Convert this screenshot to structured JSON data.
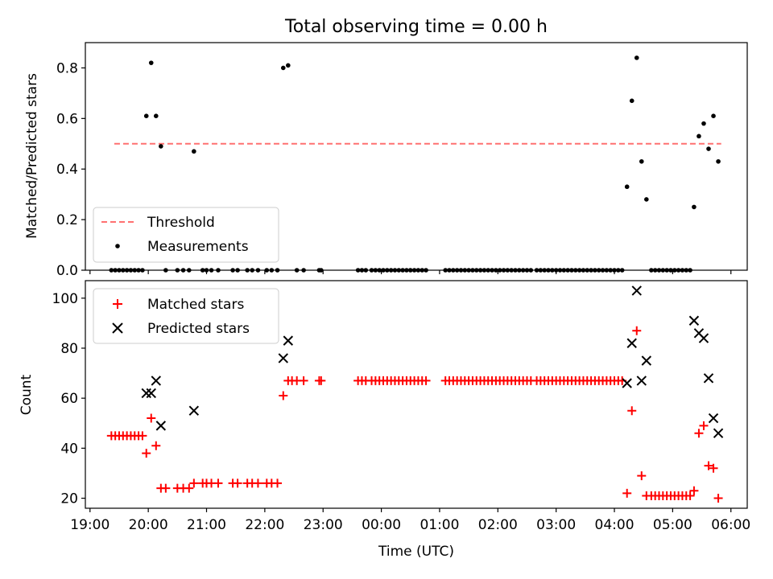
{
  "figure": {
    "title": "Total observing time = 0.00 h",
    "xlabel": "Time (UTC)",
    "colors": {
      "threshold": "#ff7070",
      "measurements": "#000000",
      "matched": "#ff0000",
      "predicted": "#000000"
    }
  },
  "chart_data": [
    {
      "type": "scatter",
      "ylabel": "Matched/Predicted stars",
      "xlim": [
        "19:00",
        "06:00"
      ],
      "ylim": [
        0,
        0.9
      ],
      "yticks": [
        "0.0",
        "0.2",
        "0.4",
        "0.6",
        "0.8"
      ],
      "grid": false,
      "legend_position": "lower-left",
      "threshold": {
        "name": "Threshold",
        "value": 0.5,
        "x_range": [
          "19:25",
          "05:50"
        ],
        "style": "dashed"
      },
      "series": [
        {
          "name": "Measurements",
          "marker": "dot",
          "points": [
            [
              "19:22",
              0
            ],
            [
              "19:26",
              0
            ],
            [
              "19:30",
              0
            ],
            [
              "19:34",
              0
            ],
            [
              "19:38",
              0
            ],
            [
              "19:42",
              0
            ],
            [
              "19:46",
              0
            ],
            [
              "19:50",
              0
            ],
            [
              "19:54",
              0
            ],
            [
              "19:58",
              0.61
            ],
            [
              "20:03",
              0.82
            ],
            [
              "20:08",
              0.61
            ],
            [
              "20:13",
              0.49
            ],
            [
              "20:18",
              0
            ],
            [
              "20:30",
              0
            ],
            [
              "20:36",
              0
            ],
            [
              "20:42",
              0
            ],
            [
              "20:47",
              0.47
            ],
            [
              "20:56",
              0
            ],
            [
              "21:00",
              0
            ],
            [
              "21:05",
              0
            ],
            [
              "21:12",
              0
            ],
            [
              "21:27",
              0
            ],
            [
              "21:32",
              0
            ],
            [
              "21:42",
              0
            ],
            [
              "21:47",
              0
            ],
            [
              "21:53",
              0
            ],
            [
              "22:02",
              0
            ],
            [
              "22:07",
              0
            ],
            [
              "22:13",
              0
            ],
            [
              "22:19",
              0.8
            ],
            [
              "22:24",
              0.81
            ],
            [
              "22:33",
              0
            ],
            [
              "22:40",
              0
            ],
            [
              "22:56",
              0
            ],
            [
              "22:58",
              0
            ],
            [
              "23:36",
              0
            ],
            [
              "23:40",
              0
            ],
            [
              "23:44",
              0
            ],
            [
              "23:50",
              0
            ],
            [
              "23:54",
              0
            ],
            [
              "23:58",
              0
            ],
            [
              "00:02",
              0
            ],
            [
              "00:06",
              0
            ],
            [
              "00:10",
              0
            ],
            [
              "00:14",
              0
            ],
            [
              "00:18",
              0
            ],
            [
              "00:22",
              0
            ],
            [
              "00:26",
              0
            ],
            [
              "00:30",
              0
            ],
            [
              "00:34",
              0
            ],
            [
              "00:38",
              0
            ],
            [
              "00:42",
              0
            ],
            [
              "00:46",
              0
            ],
            [
              "01:06",
              0
            ],
            [
              "01:10",
              0
            ],
            [
              "01:14",
              0
            ],
            [
              "01:18",
              0
            ],
            [
              "01:22",
              0
            ],
            [
              "01:26",
              0
            ],
            [
              "01:30",
              0
            ],
            [
              "01:34",
              0
            ],
            [
              "01:38",
              0
            ],
            [
              "01:42",
              0
            ],
            [
              "01:46",
              0
            ],
            [
              "01:50",
              0
            ],
            [
              "01:54",
              0
            ],
            [
              "01:58",
              0
            ],
            [
              "02:02",
              0
            ],
            [
              "02:06",
              0
            ],
            [
              "02:10",
              0
            ],
            [
              "02:14",
              0
            ],
            [
              "02:18",
              0
            ],
            [
              "02:22",
              0
            ],
            [
              "02:26",
              0
            ],
            [
              "02:30",
              0
            ],
            [
              "02:34",
              0
            ],
            [
              "02:40",
              0
            ],
            [
              "02:44",
              0
            ],
            [
              "02:48",
              0
            ],
            [
              "02:52",
              0
            ],
            [
              "02:56",
              0
            ],
            [
              "03:00",
              0
            ],
            [
              "03:04",
              0
            ],
            [
              "03:08",
              0
            ],
            [
              "03:12",
              0
            ],
            [
              "03:16",
              0
            ],
            [
              "03:20",
              0
            ],
            [
              "03:24",
              0
            ],
            [
              "03:28",
              0
            ],
            [
              "03:32",
              0
            ],
            [
              "03:36",
              0
            ],
            [
              "03:40",
              0
            ],
            [
              "03:44",
              0
            ],
            [
              "03:48",
              0
            ],
            [
              "03:52",
              0
            ],
            [
              "03:56",
              0
            ],
            [
              "04:00",
              0
            ],
            [
              "04:04",
              0
            ],
            [
              "04:08",
              0
            ],
            [
              "04:13",
              0.33
            ],
            [
              "04:18",
              0.67
            ],
            [
              "04:23",
              0.84
            ],
            [
              "04:28",
              0.43
            ],
            [
              "04:33",
              0.28
            ],
            [
              "04:38",
              0
            ],
            [
              "04:42",
              0
            ],
            [
              "04:46",
              0
            ],
            [
              "04:50",
              0
            ],
            [
              "04:54",
              0
            ],
            [
              "04:58",
              0
            ],
            [
              "05:02",
              0
            ],
            [
              "05:06",
              0
            ],
            [
              "05:10",
              0
            ],
            [
              "05:14",
              0
            ],
            [
              "05:18",
              0
            ],
            [
              "05:22",
              0.25
            ],
            [
              "05:27",
              0.53
            ],
            [
              "05:32",
              0.58
            ],
            [
              "05:37",
              0.48
            ],
            [
              "05:42",
              0.61
            ],
            [
              "05:47",
              0.43
            ]
          ]
        }
      ]
    },
    {
      "type": "scatter",
      "ylabel": "Count",
      "xlim": [
        "19:00",
        "06:00"
      ],
      "ylim": [
        16,
        107
      ],
      "yticks": [
        "20",
        "40",
        "60",
        "80",
        "100"
      ],
      "xticks": [
        "19:00",
        "20:00",
        "21:00",
        "22:00",
        "23:00",
        "00:00",
        "01:00",
        "02:00",
        "03:00",
        "04:00",
        "05:00",
        "06:00"
      ],
      "grid": false,
      "legend_position": "upper-left",
      "series": [
        {
          "name": "Matched stars",
          "marker": "+",
          "points": [
            [
              "19:22",
              45
            ],
            [
              "19:26",
              45
            ],
            [
              "19:30",
              45
            ],
            [
              "19:34",
              45
            ],
            [
              "19:38",
              45
            ],
            [
              "19:42",
              45
            ],
            [
              "19:46",
              45
            ],
            [
              "19:50",
              45
            ],
            [
              "19:54",
              45
            ],
            [
              "19:58",
              38
            ],
            [
              "20:03",
              52
            ],
            [
              "20:08",
              41
            ],
            [
              "20:13",
              24
            ],
            [
              "20:18",
              24
            ],
            [
              "20:30",
              24
            ],
            [
              "20:36",
              24
            ],
            [
              "20:42",
              24
            ],
            [
              "20:47",
              26
            ],
            [
              "20:56",
              26
            ],
            [
              "21:00",
              26
            ],
            [
              "21:05",
              26
            ],
            [
              "21:12",
              26
            ],
            [
              "21:27",
              26
            ],
            [
              "21:32",
              26
            ],
            [
              "21:42",
              26
            ],
            [
              "21:47",
              26
            ],
            [
              "21:53",
              26
            ],
            [
              "22:02",
              26
            ],
            [
              "22:07",
              26
            ],
            [
              "22:13",
              26
            ],
            [
              "22:19",
              61
            ],
            [
              "22:24",
              67
            ],
            [
              "22:28",
              67
            ],
            [
              "22:33",
              67
            ],
            [
              "22:40",
              67
            ],
            [
              "22:56",
              67
            ],
            [
              "22:58",
              67
            ],
            [
              "23:36",
              67
            ],
            [
              "23:40",
              67
            ],
            [
              "23:44",
              67
            ],
            [
              "23:50",
              67
            ],
            [
              "23:54",
              67
            ],
            [
              "23:58",
              67
            ],
            [
              "00:02",
              67
            ],
            [
              "00:06",
              67
            ],
            [
              "00:10",
              67
            ],
            [
              "00:14",
              67
            ],
            [
              "00:18",
              67
            ],
            [
              "00:22",
              67
            ],
            [
              "00:26",
              67
            ],
            [
              "00:30",
              67
            ],
            [
              "00:34",
              67
            ],
            [
              "00:38",
              67
            ],
            [
              "00:42",
              67
            ],
            [
              "00:46",
              67
            ],
            [
              "01:06",
              67
            ],
            [
              "01:10",
              67
            ],
            [
              "01:14",
              67
            ],
            [
              "01:18",
              67
            ],
            [
              "01:22",
              67
            ],
            [
              "01:26",
              67
            ],
            [
              "01:30",
              67
            ],
            [
              "01:34",
              67
            ],
            [
              "01:38",
              67
            ],
            [
              "01:42",
              67
            ],
            [
              "01:46",
              67
            ],
            [
              "01:50",
              67
            ],
            [
              "01:54",
              67
            ],
            [
              "01:58",
              67
            ],
            [
              "02:02",
              67
            ],
            [
              "02:06",
              67
            ],
            [
              "02:10",
              67
            ],
            [
              "02:14",
              67
            ],
            [
              "02:18",
              67
            ],
            [
              "02:22",
              67
            ],
            [
              "02:26",
              67
            ],
            [
              "02:30",
              67
            ],
            [
              "02:34",
              67
            ],
            [
              "02:40",
              67
            ],
            [
              "02:44",
              67
            ],
            [
              "02:48",
              67
            ],
            [
              "02:52",
              67
            ],
            [
              "02:56",
              67
            ],
            [
              "03:00",
              67
            ],
            [
              "03:04",
              67
            ],
            [
              "03:08",
              67
            ],
            [
              "03:12",
              67
            ],
            [
              "03:16",
              67
            ],
            [
              "03:20",
              67
            ],
            [
              "03:24",
              67
            ],
            [
              "03:28",
              67
            ],
            [
              "03:32",
              67
            ],
            [
              "03:36",
              67
            ],
            [
              "03:40",
              67
            ],
            [
              "03:44",
              67
            ],
            [
              "03:48",
              67
            ],
            [
              "03:52",
              67
            ],
            [
              "03:56",
              67
            ],
            [
              "04:00",
              67
            ],
            [
              "04:04",
              67
            ],
            [
              "04:08",
              67
            ],
            [
              "04:13",
              22
            ],
            [
              "04:18",
              55
            ],
            [
              "04:23",
              87
            ],
            [
              "04:28",
              29
            ],
            [
              "04:33",
              21
            ],
            [
              "04:38",
              21
            ],
            [
              "04:42",
              21
            ],
            [
              "04:46",
              21
            ],
            [
              "04:50",
              21
            ],
            [
              "04:54",
              21
            ],
            [
              "04:58",
              21
            ],
            [
              "05:02",
              21
            ],
            [
              "05:06",
              21
            ],
            [
              "05:10",
              21
            ],
            [
              "05:14",
              21
            ],
            [
              "05:18",
              21
            ],
            [
              "05:22",
              23
            ],
            [
              "05:27",
              46
            ],
            [
              "05:32",
              49
            ],
            [
              "05:37",
              33
            ],
            [
              "05:42",
              32
            ],
            [
              "05:47",
              20
            ]
          ]
        },
        {
          "name": "Predicted stars",
          "marker": "x",
          "points": [
            [
              "19:58",
              62
            ],
            [
              "20:03",
              62
            ],
            [
              "20:08",
              67
            ],
            [
              "20:13",
              49
            ],
            [
              "20:47",
              55
            ],
            [
              "22:19",
              76
            ],
            [
              "22:24",
              83
            ],
            [
              "04:13",
              66
            ],
            [
              "04:18",
              82
            ],
            [
              "04:23",
              103
            ],
            [
              "04:28",
              67
            ],
            [
              "04:33",
              75
            ],
            [
              "05:22",
              91
            ],
            [
              "05:27",
              86
            ],
            [
              "05:32",
              84
            ],
            [
              "05:37",
              68
            ],
            [
              "05:42",
              52
            ],
            [
              "05:47",
              46
            ]
          ]
        }
      ]
    }
  ]
}
